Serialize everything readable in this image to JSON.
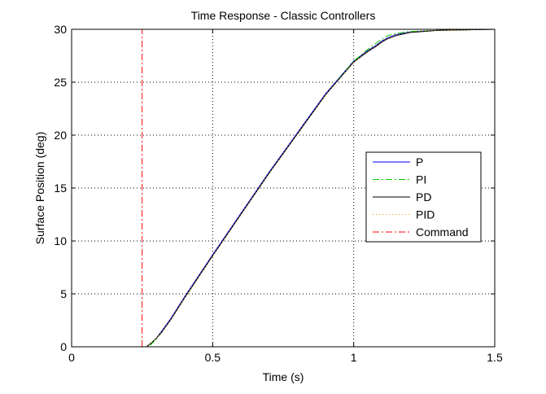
{
  "chart_data": {
    "type": "line",
    "title": "Time Response - Classic Controllers",
    "xlabel": "Time (s)",
    "ylabel": "Surface Position (deg)",
    "xlim": [
      0,
      1.5
    ],
    "ylim": [
      0,
      30
    ],
    "grid": true,
    "legend_position": "right",
    "x_ticks": [
      0,
      0.5,
      1,
      1.5
    ],
    "x_tick_labels": [
      "0",
      "0.5",
      "1",
      "1.5"
    ],
    "y_ticks": [
      0,
      5,
      10,
      15,
      20,
      25,
      30
    ],
    "y_tick_labels": [
      "0",
      "5",
      "10",
      "15",
      "20",
      "25",
      "30"
    ],
    "series": [
      {
        "name": "P",
        "color": "#0000ff",
        "dash": "solid",
        "x": [
          0,
          0.265,
          0.28,
          0.3,
          0.32,
          0.35,
          0.4,
          0.5,
          0.6,
          0.7,
          0.8,
          0.9,
          1.0,
          1.05,
          1.08,
          1.1,
          1.12,
          1.15,
          1.2,
          1.25,
          1.3,
          1.4,
          1.5
        ],
        "y": [
          0,
          0,
          0.3,
          0.8,
          1.5,
          2.6,
          4.7,
          8.7,
          12.6,
          16.5,
          20.2,
          23.9,
          27.0,
          28.0,
          28.5,
          28.9,
          29.2,
          29.5,
          29.75,
          29.85,
          29.9,
          29.95,
          30.0
        ]
      },
      {
        "name": "PI",
        "color": "#00cc00",
        "dash": "dashdot",
        "x": [
          0,
          0.265,
          0.28,
          0.3,
          0.32,
          0.35,
          0.4,
          0.5,
          0.6,
          0.7,
          0.8,
          0.9,
          1.0,
          1.05,
          1.08,
          1.1,
          1.12,
          1.15,
          1.2,
          1.25,
          1.3,
          1.4,
          1.5
        ],
        "y": [
          0,
          0,
          0.2,
          0.7,
          1.4,
          2.5,
          4.6,
          8.6,
          12.5,
          16.4,
          20.1,
          23.8,
          27.0,
          28.1,
          28.7,
          29.1,
          29.4,
          29.6,
          29.8,
          29.85,
          29.9,
          29.95,
          30.0
        ]
      },
      {
        "name": "PD",
        "color": "#000000",
        "dash": "solid",
        "x": [
          0,
          0.265,
          0.28,
          0.3,
          0.32,
          0.35,
          0.4,
          0.5,
          0.6,
          0.7,
          0.8,
          0.9,
          1.0,
          1.05,
          1.08,
          1.1,
          1.12,
          1.15,
          1.2,
          1.25,
          1.3,
          1.4,
          1.5
        ],
        "y": [
          0,
          0,
          0.3,
          0.8,
          1.4,
          2.5,
          4.6,
          8.6,
          12.5,
          16.4,
          20.1,
          23.8,
          26.9,
          27.9,
          28.4,
          28.8,
          29.1,
          29.4,
          29.7,
          29.8,
          29.9,
          29.95,
          30.0
        ]
      },
      {
        "name": "PID",
        "color": "#ff9900",
        "dash": "dotted",
        "x": [
          0,
          0.265,
          0.28,
          0.3,
          0.32,
          0.35,
          0.4,
          0.5,
          0.6,
          0.7,
          0.8,
          0.9,
          1.0,
          1.05,
          1.08,
          1.1,
          1.12,
          1.15,
          1.2,
          1.25,
          1.3,
          1.4,
          1.5
        ],
        "y": [
          0,
          0,
          0.3,
          0.8,
          1.4,
          2.5,
          4.6,
          8.6,
          12.5,
          16.4,
          20.1,
          23.8,
          26.9,
          28.0,
          28.5,
          28.9,
          29.2,
          29.5,
          29.75,
          29.85,
          29.9,
          29.95,
          30.0
        ]
      },
      {
        "name": "Command",
        "color": "#ff0000",
        "dash": "dashdot",
        "x": [
          0.25,
          0.25
        ],
        "y": [
          0,
          30
        ]
      }
    ]
  }
}
